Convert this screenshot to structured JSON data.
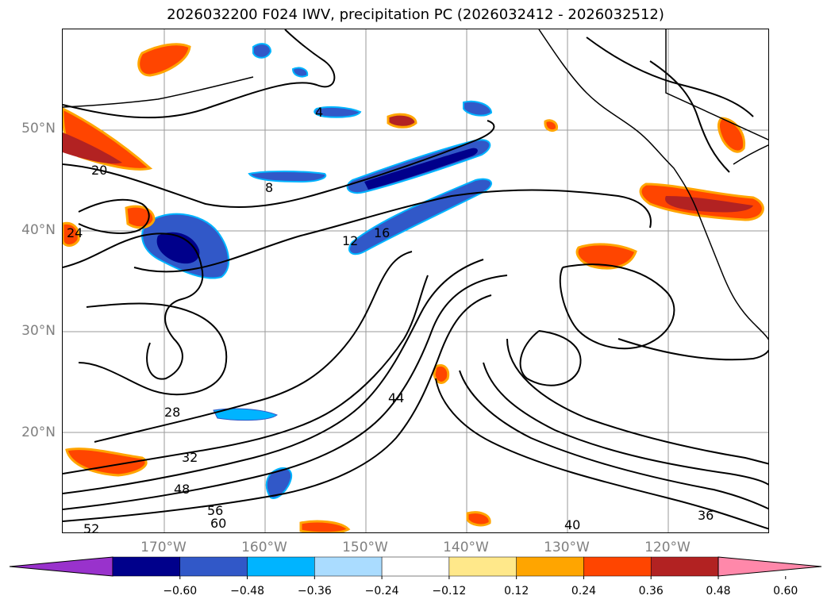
{
  "title": "2026032200 F024 IWV, precipitation PC (2026032412 - 2026032512)",
  "lat_labels": [
    "50°N",
    "40°N",
    "30°N",
    "20°N"
  ],
  "lon_labels": [
    "170°W",
    "160°W",
    "150°W",
    "140°W",
    "130°W",
    "120°W"
  ],
  "contour_labels": [
    "4",
    "8",
    "12",
    "16",
    "20",
    "24",
    "28",
    "32",
    "36",
    "40",
    "44",
    "48",
    "52",
    "56",
    "60"
  ],
  "colorbar": {
    "ticks": [
      "−0.60",
      "−0.48",
      "−0.36",
      "−0.24",
      "−0.12",
      "0.12",
      "0.24",
      "0.36",
      "0.48",
      "0.60"
    ],
    "colors": [
      "#9932cc",
      "#00008b",
      "#3158c8",
      "#00b4ff",
      "#aadcff",
      "#ffffff",
      "#ffe88a",
      "#ffa500",
      "#ff4500",
      "#b22222",
      "#ff88aa"
    ]
  }
}
